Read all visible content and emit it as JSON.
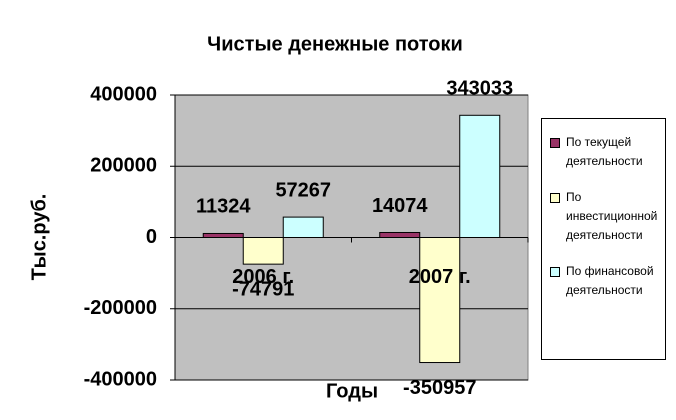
{
  "chart_data": {
    "type": "bar",
    "title": "Чистые денежные потоки",
    "y_label": "Тыс.руб.",
    "x_label": "Годы",
    "categories": [
      "2006 г.",
      "2007 г."
    ],
    "series": [
      {
        "name": "По текущей деятельности",
        "color": "#993366",
        "values": [
          11324,
          14074
        ]
      },
      {
        "name": "По инвестиционной деятельности",
        "color": "#ffffcc",
        "values": [
          -74791,
          -350957
        ]
      },
      {
        "name": "По финансовой деятельности",
        "color": "#ccffff",
        "values": [
          57267,
          343033
        ]
      }
    ],
    "ylim": [
      -400000,
      400000
    ],
    "yticks": [
      -400000,
      -200000,
      0,
      200000,
      400000
    ],
    "grid": true,
    "legend": "right"
  }
}
